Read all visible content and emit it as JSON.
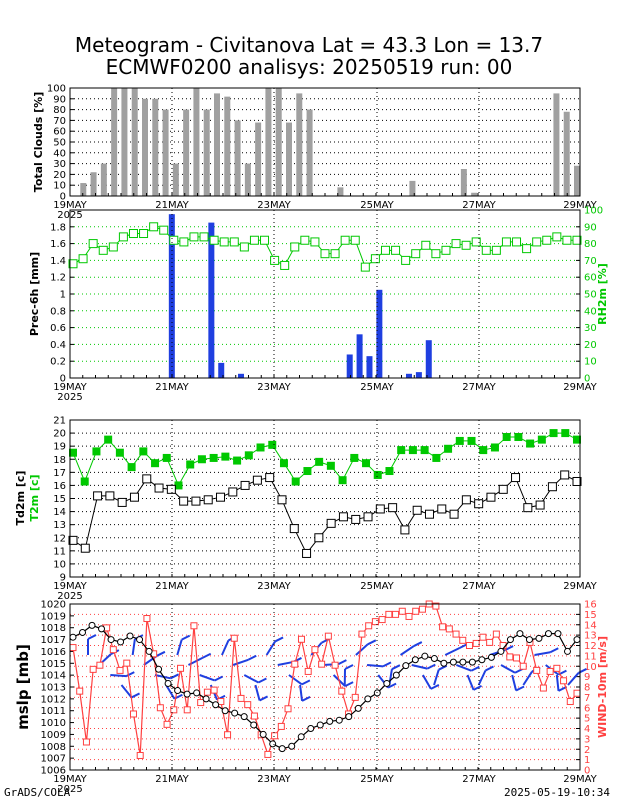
{
  "title": {
    "line1": "Meteogram - Civitanova Lat = 43.3 Lon = 13.7",
    "line2": "ECMWF0200 analisys: 20250519 run: 00"
  },
  "footer": {
    "left": "GrADS/COLA",
    "right": "2025-05-19-10:34"
  },
  "colors": {
    "precip": "#1f3fe0",
    "rh": "#00c800",
    "t2m": "#00c800",
    "td2m": "#000000",
    "wind": "#1f3fe0",
    "windspeed": "#ff4040",
    "clouds": "#a0a0a0",
    "mslp": "#000000",
    "grid": "#000000"
  },
  "chart_data": [
    {
      "type": "bar",
      "ylabel": "Total Clouds [%]",
      "ylim": [
        0,
        100
      ],
      "yticks": [
        "0",
        "10",
        "20",
        "30",
        "40",
        "50",
        "60",
        "70",
        "80",
        "90",
        "100"
      ],
      "xticks": [
        "19MAY",
        "21MAY",
        "23MAY",
        "25MAY",
        "27MAY",
        "29MAY"
      ],
      "xyear": "2025",
      "values": [
        0,
        12,
        22,
        30,
        100,
        100,
        100,
        90,
        90,
        80,
        30,
        80,
        100,
        80,
        95,
        92,
        70,
        30,
        68,
        100,
        100,
        68,
        95,
        80,
        0,
        0,
        8,
        0,
        0,
        0,
        0,
        0,
        0,
        14,
        0,
        0,
        0,
        0,
        25,
        3,
        0,
        0,
        0,
        0,
        0,
        0,
        0,
        95,
        78,
        28
      ]
    },
    {
      "type": "bar+line",
      "ylabel": "Prec-6h [mm]",
      "ylabel_right": "RH2m [%]",
      "ylim": [
        0,
        2
      ],
      "yticks": [
        "0",
        "0.2",
        "0.4",
        "0.6",
        "0.8",
        "1",
        "1.2",
        "1.4",
        "1.6",
        "1.8"
      ],
      "ylim_right": [
        0,
        100
      ],
      "yticks_right": [
        "0",
        "10",
        "20",
        "30",
        "40",
        "50",
        "60",
        "70",
        "80",
        "90",
        "100"
      ],
      "xticks": [
        "19MAY",
        "21MAY",
        "23MAY",
        "25MAY",
        "27MAY",
        "29MAY"
      ],
      "xyear": "2025",
      "precip": [
        0,
        0,
        0,
        0,
        0,
        0,
        0,
        0,
        0,
        0,
        1.95,
        0,
        0,
        0,
        1.85,
        0.18,
        0,
        0.05,
        0,
        0,
        0,
        0,
        0,
        0,
        0,
        0,
        0,
        0,
        0.28,
        0.52,
        0.26,
        1.05,
        0,
        0,
        0.05,
        0.07,
        0.45,
        0,
        0,
        0,
        0,
        0,
        0,
        0,
        0,
        0,
        0,
        0,
        0,
        0,
        0,
        0
      ],
      "rh": [
        68,
        71,
        80,
        76,
        78,
        84,
        86,
        86,
        90,
        88,
        82,
        81,
        84,
        84,
        82,
        81,
        81,
        78,
        82,
        82,
        70,
        67,
        78,
        82,
        81,
        74,
        74,
        82,
        82,
        66,
        71,
        76,
        76,
        70,
        74,
        79,
        74,
        76,
        80,
        79,
        81,
        76,
        76,
        81,
        81,
        77,
        81,
        82,
        84,
        82,
        82
      ]
    },
    {
      "type": "line",
      "ylabel": "Td2m [c]",
      "ylabel2": "T2m [c]",
      "ylim": [
        9,
        21
      ],
      "yticks": [
        "9",
        "10",
        "11",
        "12",
        "13",
        "14",
        "15",
        "16",
        "17",
        "18",
        "19",
        "20",
        "21"
      ],
      "xticks": [
        "19MAY",
        "21MAY",
        "23MAY",
        "25MAY",
        "27MAY",
        "29MAY"
      ],
      "xyear": "2025",
      "t2m": [
        18.5,
        16.3,
        18.6,
        19.5,
        18.5,
        17.4,
        18.6,
        17.7,
        18.1,
        16.0,
        17.6,
        18.0,
        18.1,
        18.2,
        17.9,
        18.3,
        18.9,
        19.1,
        17.7,
        16.3,
        17.1,
        17.8,
        17.5,
        16.4,
        18.1,
        17.7,
        16.8,
        17.1,
        18.7,
        18.7,
        18.7,
        18.1,
        18.8,
        19.4,
        19.4,
        18.7,
        18.9,
        19.7,
        19.7,
        19.2,
        19.5,
        20.0,
        20.0,
        19.5
      ],
      "td2m": [
        11.8,
        11.2,
        15.2,
        15.2,
        14.7,
        15.1,
        16.5,
        15.8,
        15.7,
        14.8,
        14.8,
        14.9,
        15.1,
        15.5,
        16.0,
        16.4,
        16.6,
        14.9,
        12.7,
        10.8,
        12.0,
        13.1,
        13.6,
        13.4,
        13.6,
        14.2,
        14.3,
        12.6,
        14.1,
        13.8,
        14.2,
        13.8,
        14.9,
        14.6,
        15.1,
        15.7,
        16.6,
        14.3,
        14.5,
        15.9,
        16.8,
        16.3
      ]
    },
    {
      "type": "line+barbs",
      "ylabel": "mslp [mb]",
      "ylabel_right": "WIND-10m [m/s]",
      "ylim": [
        1006,
        1020
      ],
      "yticks": [
        "1006",
        "1007",
        "1008",
        "1009",
        "1010",
        "1011",
        "1012",
        "1013",
        "1014",
        "1015",
        "1016",
        "1017",
        "1018",
        "1019",
        "1020"
      ],
      "ylim_right": [
        0,
        16
      ],
      "yticks_right": [
        "0",
        "1",
        "2",
        "3",
        "4",
        "5",
        "6",
        "7",
        "8",
        "9",
        "10",
        "11",
        "12",
        "13",
        "14",
        "15",
        "16"
      ],
      "xticks": [
        "19MAY",
        "21MAY",
        "23MAY",
        "25MAY",
        "27MAY",
        "29MAY"
      ],
      "xyear": "2025",
      "mslp": [
        1017.2,
        1017.6,
        1018.2,
        1017.9,
        1017.0,
        1016.8,
        1017.3,
        1017.0,
        1016.0,
        1014.5,
        1013.3,
        1012.7,
        1012.4,
        1012.5,
        1012.0,
        1011.5,
        1011.0,
        1010.8,
        1010.5,
        1009.8,
        1009.0,
        1008.2,
        1007.8,
        1008.0,
        1008.8,
        1009.5,
        1009.8,
        1010.1,
        1010.2,
        1010.5,
        1011.2,
        1012.0,
        1012.5,
        1013.3,
        1014.0,
        1014.8,
        1015.3,
        1015.6,
        1015.4,
        1015.0,
        1015.1,
        1015.1,
        1015.1,
        1015.3,
        1015.5,
        1016.0,
        1017.0,
        1017.5,
        1017.0,
        1017.1,
        1017.5,
        1017.5,
        1016.0,
        1017.0
      ],
      "windspeed": [
        11.8,
        7.6,
        2.7,
        9.7,
        10.1,
        13.7,
        11.6,
        9.6,
        10.3,
        5.4,
        1.4,
        14.6,
        11.2,
        6.0,
        4.4,
        5.8,
        9.8,
        5.8,
        13.9,
        6.5,
        7.5,
        7.7,
        6.6,
        3.4,
        12.7,
        6.9,
        6.3,
        5.2,
        3.4,
        1.5,
        3.3,
        4.2,
        5.9,
        10.2,
        12.6,
        9.5,
        11.6,
        10.2,
        12.9,
        10.1,
        7.6,
        5.4,
        7.0,
        13.1,
        13.9,
        14.3,
        14.5,
        15.0,
        15.0,
        15.3,
        14.8,
        15.3,
        15.5,
        16.0,
        15.8,
        13.8,
        13.6,
        13.1,
        12.5,
        12.0,
        12.2,
        12.8,
        12.3,
        13.1,
        12.0,
        10.9,
        10.8,
        10.0,
        12.3,
        9.6,
        7.9,
        9.5,
        9.8,
        8.6,
        6.6,
        7.4
      ]
    }
  ]
}
